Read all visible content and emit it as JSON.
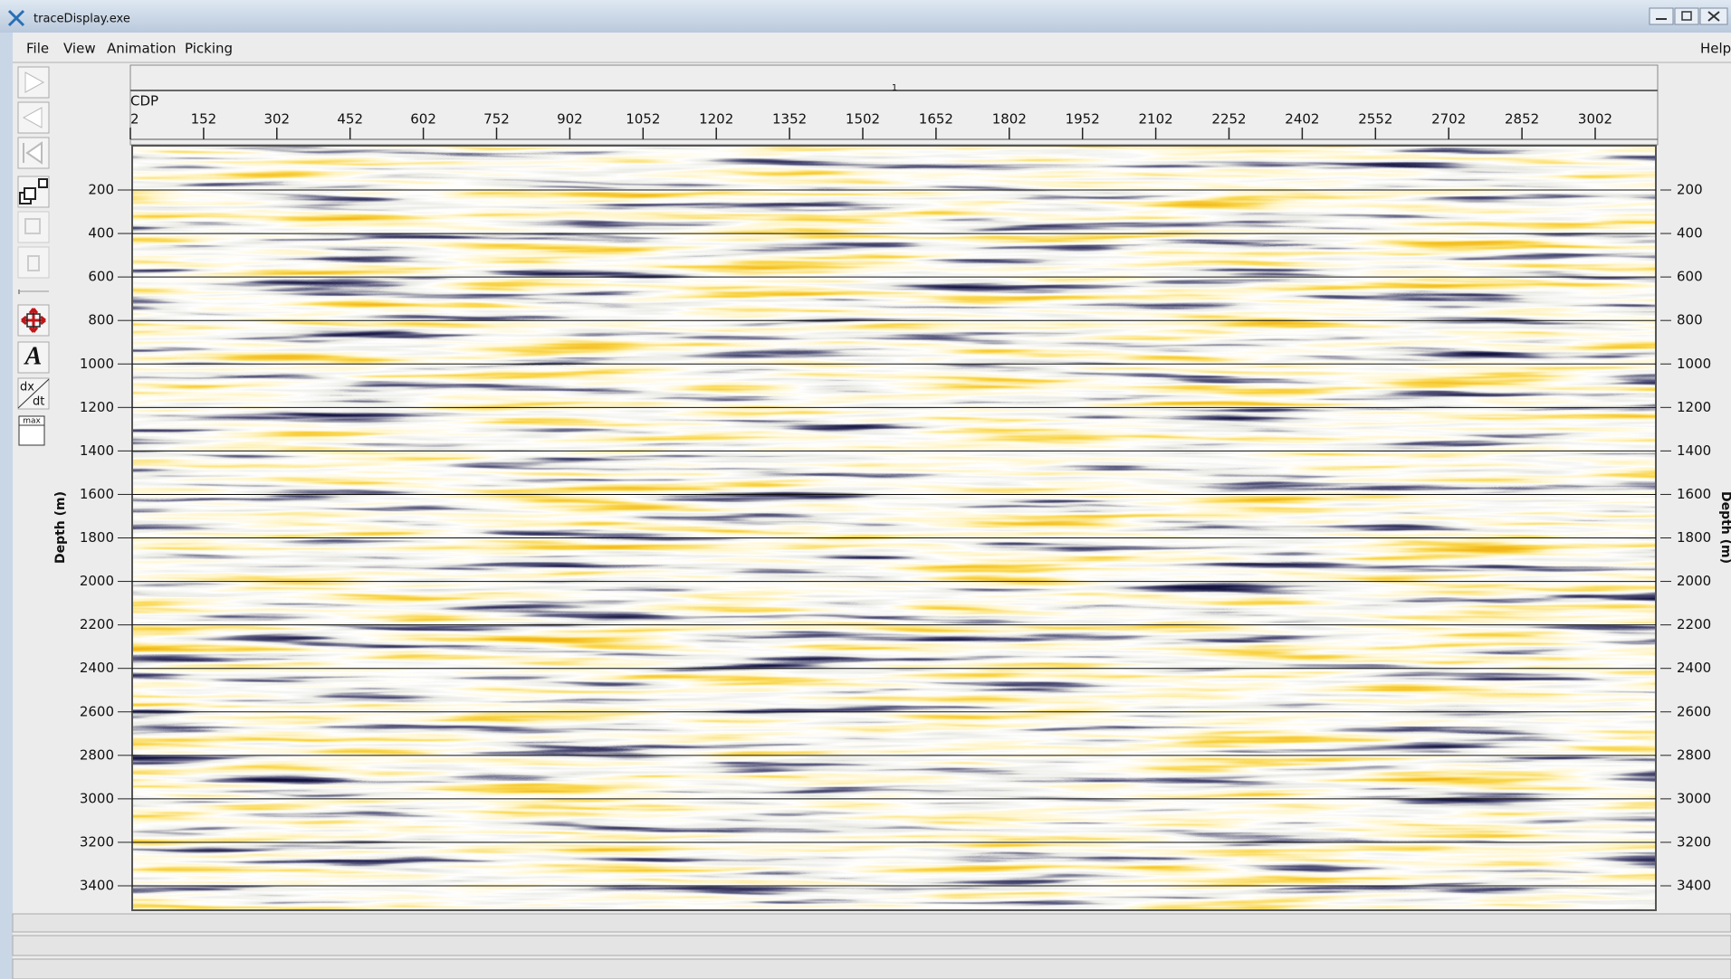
{
  "window": {
    "title": "traceDisplay.exe"
  },
  "menu": {
    "items": [
      "File",
      "View",
      "Animation",
      "Picking"
    ],
    "help": "Help"
  },
  "toolbar": {
    "text_icon": "A",
    "dxdt": [
      "dx",
      "dt"
    ],
    "max": "max"
  },
  "display": {
    "marker": "1",
    "x_label": "CDP",
    "x_ticks": [
      2,
      152,
      302,
      452,
      602,
      752,
      902,
      1052,
      1202,
      1352,
      1502,
      1652,
      1802,
      1952,
      2102,
      2252,
      2402,
      2552,
      2702,
      2852,
      3002
    ],
    "y_label": "Depth (m)",
    "y_ticks": [
      200,
      400,
      600,
      800,
      1000,
      1200,
      1400,
      1600,
      1800,
      2000,
      2200,
      2400,
      2600,
      2800,
      3000,
      3200,
      3400
    ]
  }
}
